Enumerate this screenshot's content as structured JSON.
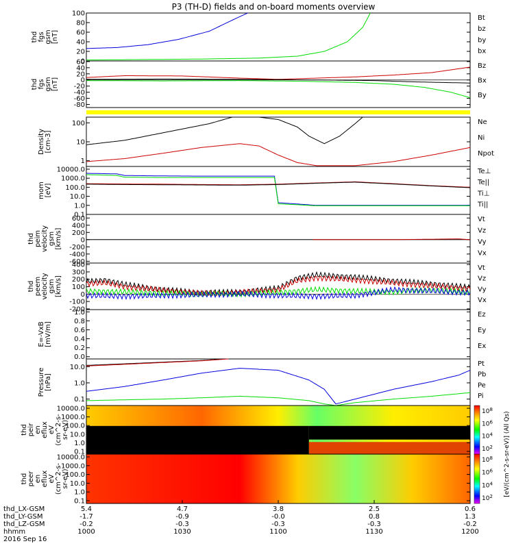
{
  "title": "P3 (TH-D) fields and on-board moments overview",
  "colors": {
    "black": "#000000",
    "red": "#cc0000",
    "green": "#00dd00",
    "blue": "#0000dd",
    "yellow": "#ffff00"
  },
  "chart_data": [
    {
      "type": "line",
      "id": "fgs-gsm",
      "ylabel": [
        "thd",
        "fgs",
        "gsm",
        "[nT]"
      ],
      "ticks": [
        "0",
        "20",
        "40",
        "60",
        "80",
        "100"
      ],
      "tickvals": [
        0,
        20,
        40,
        60,
        80,
        100
      ],
      "ylim": [
        0,
        100
      ],
      "series": [
        {
          "name": "Bt",
          "color": "#000000"
        },
        {
          "name": "bz",
          "color": "#cc0000"
        },
        {
          "name": "by",
          "color": "#00dd00"
        },
        {
          "name": "bx",
          "color": "#0000dd"
        }
      ],
      "curves": [
        {
          "color": "#0000dd",
          "x": [
            0,
            0.08,
            0.16,
            0.24,
            0.32,
            0.38,
            0.42
          ],
          "y": [
            26,
            28,
            34,
            45,
            62,
            85,
            100
          ]
        },
        {
          "color": "#00dd00",
          "x": [
            0,
            0.15,
            0.3,
            0.45,
            0.55,
            0.62,
            0.68,
            0.72,
            0.74
          ],
          "y": [
            2,
            3,
            4,
            6,
            10,
            20,
            40,
            70,
            100
          ]
        }
      ]
    },
    {
      "type": "line",
      "id": "fgs-gsm-2",
      "ylabel": [
        "thd",
        "fgs",
        "gsm",
        "[nT]"
      ],
      "ticks": [
        "-80",
        "-60",
        "-40",
        "-20",
        "0",
        "20",
        "40",
        "60"
      ],
      "tickvals": [
        -80,
        -60,
        -40,
        -20,
        0,
        20,
        40,
        60
      ],
      "ylim": [
        -90,
        62
      ],
      "series": [
        {
          "name": "Bz",
          "color": "#cc0000"
        },
        {
          "name": "Bx",
          "color": "#000000"
        },
        {
          "name": "By",
          "color": "#00dd00"
        }
      ],
      "curves": [
        {
          "color": "#cc0000",
          "x": [
            0,
            0.1,
            0.25,
            0.4,
            0.5,
            0.6,
            0.7,
            0.8,
            0.9,
            1.0
          ],
          "y": [
            8,
            14,
            13,
            6,
            2,
            6,
            10,
            16,
            24,
            42
          ]
        },
        {
          "color": "#000000",
          "x": [
            0,
            0.2,
            0.4,
            0.6,
            0.75,
            0.85,
            0.92,
            1.0
          ],
          "y": [
            2,
            3,
            2,
            0,
            -2,
            -6,
            -8,
            -10
          ]
        },
        {
          "color": "#00dd00",
          "x": [
            0,
            0.2,
            0.4,
            0.55,
            0.7,
            0.8,
            0.88,
            0.95,
            1.0
          ],
          "y": [
            -2,
            -3,
            -2,
            -4,
            -8,
            -14,
            -24,
            -40,
            -58
          ]
        }
      ]
    },
    {
      "type": "line",
      "id": "density",
      "ylabel": [
        "Density",
        "[cm-3]"
      ],
      "ticks": [
        "1",
        "10",
        "100"
      ],
      "tickvals": [
        1,
        10,
        100
      ],
      "ylim": [
        0.5,
        200
      ],
      "log": true,
      "series": [
        {
          "name": "Ne",
          "color": "#cc0000"
        },
        {
          "name": "Ni",
          "color": "#000000"
        },
        {
          "name": "Npot",
          "color": "#0000dd"
        }
      ],
      "curves": [
        {
          "color": "#000000",
          "x": [
            0,
            0.1,
            0.2,
            0.32,
            0.38,
            0.45,
            0.5,
            0.55,
            0.58,
            0.62,
            0.66,
            0.7,
            0.72
          ],
          "y": [
            7,
            12,
            30,
            90,
            200,
            200,
            150,
            60,
            20,
            8,
            20,
            90,
            200
          ]
        },
        {
          "color": "#cc0000",
          "x": [
            0,
            0.1,
            0.2,
            0.3,
            0.4,
            0.45,
            0.5,
            0.55,
            0.6,
            0.7,
            0.8,
            0.9,
            1.0
          ],
          "y": [
            0.9,
            1.3,
            2.5,
            5,
            8,
            6,
            2,
            0.8,
            0.55,
            0.55,
            0.9,
            2,
            5
          ]
        }
      ]
    },
    {
      "type": "line",
      "id": "temperature",
      "ylabel": [
        "mom",
        "[eV]"
      ],
      "ticks": [
        "0.1",
        "1.0",
        "10.0",
        "100.0",
        "1000.0",
        "10000.0"
      ],
      "tickvals": [
        0.1,
        1,
        10,
        100,
        1000,
        10000
      ],
      "ylim": [
        0.1,
        20000
      ],
      "log": true,
      "series": [
        {
          "name": "Te⊥",
          "color": "#cc0000"
        },
        {
          "name": "Te||",
          "color": "#000000"
        },
        {
          "name": "Ti⊥",
          "color": "#0000dd"
        },
        {
          "name": "Ti||",
          "color": "#00dd00"
        }
      ],
      "curves": [
        {
          "color": "#0000dd",
          "x": [
            0,
            0.08,
            0.1,
            0.2,
            0.3,
            0.4,
            0.49,
            0.5,
            0.6,
            0.8,
            1.0
          ],
          "y": [
            3500,
            3000,
            2000,
            1800,
            1700,
            1700,
            1700,
            2,
            1,
            1,
            1
          ]
        },
        {
          "color": "#00dd00",
          "x": [
            0,
            0.08,
            0.1,
            0.2,
            0.3,
            0.4,
            0.49,
            0.5,
            0.6,
            0.8,
            1.0
          ],
          "y": [
            2500,
            2000,
            1300,
            1200,
            1200,
            1200,
            1200,
            1.5,
            0.9,
            0.9,
            0.9
          ]
        },
        {
          "color": "#cc0000",
          "x": [
            0,
            0.1,
            0.2,
            0.3,
            0.4,
            0.5,
            0.6,
            0.7,
            0.8,
            0.9,
            1.0
          ],
          "y": [
            250,
            230,
            220,
            200,
            190,
            220,
            300,
            400,
            250,
            150,
            100
          ]
        },
        {
          "color": "#000000",
          "x": [
            0,
            0.1,
            0.2,
            0.3,
            0.4,
            0.5,
            0.6,
            0.7,
            0.8,
            0.9,
            1.0
          ],
          "y": [
            220,
            200,
            190,
            180,
            170,
            200,
            280,
            370,
            230,
            140,
            90
          ]
        }
      ]
    },
    {
      "type": "line",
      "id": "peim-velocity",
      "ylabel": [
        "thd",
        "peim",
        "velocity",
        "gsm",
        "[km/s]"
      ],
      "ticks": [
        "-600",
        "-400",
        "-200",
        "0",
        "200",
        "400",
        "600"
      ],
      "tickvals": [
        -600,
        -400,
        -200,
        0,
        200,
        400,
        600
      ],
      "ylim": [
        -650,
        700
      ],
      "series": [
        {
          "name": "Vt",
          "color": "#000000"
        },
        {
          "name": "Vz",
          "color": "#cc0000"
        },
        {
          "name": "Vy",
          "color": "#00dd00"
        },
        {
          "name": "Vx",
          "color": "#0000dd"
        }
      ],
      "curves": [
        {
          "color": "#000000",
          "x": [
            0,
            0.59,
            0.6,
            1.0
          ],
          "y": [
            0,
            0,
            0,
            0
          ]
        },
        {
          "color": "#cc0000",
          "x": [
            0.59,
            0.8,
            0.97,
            1.0
          ],
          "y": [
            0,
            0,
            20,
            0
          ]
        }
      ]
    },
    {
      "type": "line",
      "id": "peem-velocity",
      "ylabel": [
        "thd",
        "peem",
        "velocity",
        "gsm",
        "[km/s]"
      ],
      "ticks": [
        "-200",
        "-100",
        "0",
        "100",
        "200",
        "300",
        "400"
      ],
      "tickvals": [
        -200,
        -100,
        0,
        100,
        200,
        300,
        400
      ],
      "ylim": [
        -210,
        420
      ],
      "series": [
        {
          "name": "Vt",
          "color": "#000000"
        },
        {
          "name": "Vz",
          "color": "#cc0000"
        },
        {
          "name": "Vy",
          "color": "#00dd00"
        },
        {
          "name": "Vx",
          "color": "#0000dd"
        }
      ],
      "curves": [
        {
          "color": "#000000",
          "x": [
            0,
            0.05,
            0.1,
            0.2,
            0.3,
            0.4,
            0.5,
            0.55,
            0.6,
            0.7,
            0.8,
            0.9,
            1.0
          ],
          "y": [
            170,
            190,
            130,
            60,
            20,
            30,
            80,
            220,
            260,
            230,
            180,
            140,
            90
          ]
        },
        {
          "color": "#cc0000",
          "x": [
            0,
            0.05,
            0.1,
            0.2,
            0.3,
            0.4,
            0.5,
            0.55,
            0.6,
            0.7,
            0.8,
            0.9,
            1.0
          ],
          "y": [
            140,
            150,
            100,
            50,
            10,
            20,
            60,
            180,
            220,
            190,
            150,
            110,
            70
          ]
        },
        {
          "color": "#00dd00",
          "x": [
            0,
            0.1,
            0.2,
            0.3,
            0.4,
            0.5,
            0.6,
            0.7,
            0.8,
            0.9,
            1.0
          ],
          "y": [
            40,
            30,
            10,
            0,
            0,
            20,
            60,
            40,
            30,
            60,
            20
          ]
        },
        {
          "color": "#0000dd",
          "x": [
            0,
            0.1,
            0.2,
            0.3,
            0.4,
            0.5,
            0.6,
            0.7,
            0.8,
            0.9,
            1.0
          ],
          "y": [
            -20,
            -30,
            -20,
            -10,
            0,
            -20,
            -30,
            -20,
            60,
            40,
            20
          ]
        }
      ]
    },
    {
      "type": "line",
      "id": "e-field",
      "ylabel": [
        "E=-VxB",
        "[mV/m]"
      ],
      "ticks": [
        "0.0",
        "0.2",
        "0.4",
        "0.6",
        "0.8",
        "1.0"
      ],
      "tickvals": [
        0,
        0.2,
        0.4,
        0.6,
        0.8,
        1.0
      ],
      "ylim": [
        -0.05,
        1.05
      ],
      "series": [
        {
          "name": "Ez",
          "color": "#cc0000"
        },
        {
          "name": "Ey",
          "color": "#00dd00"
        },
        {
          "name": "Ex",
          "color": "#0000dd"
        }
      ],
      "curves": []
    },
    {
      "type": "line",
      "id": "pressure",
      "ylabel": [
        "Pressure",
        "[nPa]"
      ],
      "ticks": [
        "0.1",
        "1.0",
        "10.0"
      ],
      "tickvals": [
        0.1,
        1,
        10
      ],
      "ylim": [
        0.04,
        30
      ],
      "log": true,
      "series": [
        {
          "name": "Pt",
          "color": "#000000"
        },
        {
          "name": "Pb",
          "color": "#cc0000"
        },
        {
          "name": "Pe",
          "color": "#00dd00"
        },
        {
          "name": "Pi",
          "color": "#0000dd"
        }
      ],
      "curves": [
        {
          "color": "#000000",
          "x": [
            0,
            0.1,
            0.2,
            0.3,
            0.36
          ],
          "y": [
            12,
            15,
            19,
            24,
            30
          ]
        },
        {
          "color": "#cc0000",
          "x": [
            0,
            0.1,
            0.2,
            0.3,
            0.37
          ],
          "y": [
            11,
            14,
            18,
            23,
            30
          ]
        },
        {
          "color": "#0000dd",
          "x": [
            0,
            0.1,
            0.2,
            0.3,
            0.4,
            0.5,
            0.58,
            0.62,
            0.65,
            0.7,
            0.8,
            0.9,
            0.97,
            1.0
          ],
          "y": [
            0.3,
            0.6,
            1.5,
            4,
            8,
            6,
            1.5,
            0.4,
            0.05,
            0.1,
            0.4,
            1.2,
            3,
            6
          ]
        },
        {
          "color": "#00dd00",
          "x": [
            0,
            0.1,
            0.2,
            0.3,
            0.4,
            0.5,
            0.58,
            0.62,
            0.65,
            0.7,
            0.8,
            0.9,
            1.0
          ],
          "y": [
            0.08,
            0.09,
            0.1,
            0.12,
            0.15,
            0.12,
            0.08,
            0.05,
            0.04,
            0.06,
            0.1,
            0.15,
            0.25
          ]
        }
      ]
    },
    {
      "type": "heatmap",
      "id": "peir-spec",
      "ylabel": [
        "thd",
        "peir",
        "en",
        "eflux",
        "eV",
        "(cm^2-s-",
        "sr-eV)"
      ],
      "ticks": [
        "0.1",
        "1.0",
        "10.0",
        "100.0",
        "1000.0",
        "10000.0"
      ],
      "colorbar": {
        "ticks": [
          "10^2",
          "10^4",
          "10^6",
          "10^8"
        ],
        "label": "[eV/(cm^2-s-sr-eV)] (All Qs)"
      }
    },
    {
      "type": "heatmap",
      "id": "peer-spec",
      "ylabel": [
        "thd",
        "peer",
        "en",
        "eflux",
        "eV",
        "(cm^2-s-",
        "sr-eV)"
      ],
      "ticks": [
        "0.1",
        "1.0",
        "10.0",
        "100.0",
        "1000.0",
        "10000.0"
      ],
      "colorbar": {
        "ticks": [
          "10^2",
          "10^4",
          "10^6",
          "10^8"
        ],
        "label": "[eV/(cm^2-s-sr-eV)] (All Qs)"
      }
    }
  ],
  "axis": {
    "rows": [
      {
        "label": "thd_LX-GSM",
        "values": [
          "5.4",
          "4.7",
          "3.8",
          "2.5",
          "0.6"
        ]
      },
      {
        "label": "thd_LY-GSM",
        "values": [
          "-1.7",
          "-0.9",
          "-0.0",
          "0.8",
          "1.3"
        ]
      },
      {
        "label": "thd_LZ-GSM",
        "values": [
          "-0.2",
          "-0.3",
          "-0.3",
          "-0.3",
          "-0.2"
        ]
      },
      {
        "label": "hhmm",
        "values": [
          "1000",
          "1030",
          "1100",
          "1130",
          "1200"
        ]
      }
    ],
    "date": "2016 Sep 16"
  }
}
